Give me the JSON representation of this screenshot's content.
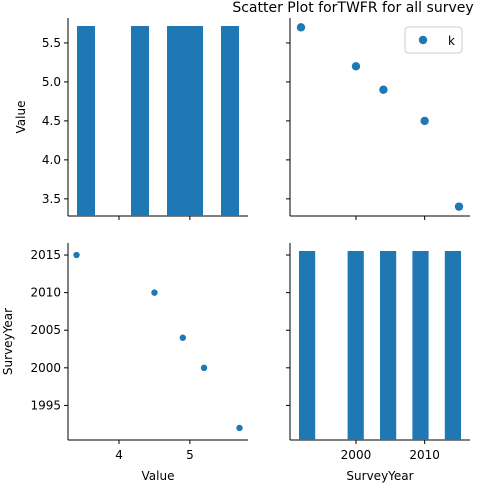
{
  "chart_data": {
    "type": "scatter",
    "title": "Scatter Plot forTWFR for all survey",
    "variables": [
      "Value",
      "SurveyYear"
    ],
    "points": [
      {
        "Value": 5.7,
        "SurveyYear": 1992
      },
      {
        "Value": 5.2,
        "SurveyYear": 2000
      },
      {
        "Value": 4.9,
        "SurveyYear": 2004
      },
      {
        "Value": 4.5,
        "SurveyYear": 2010
      },
      {
        "Value": 3.4,
        "SurveyYear": 2015
      }
    ],
    "panels": {
      "value_hist": {
        "type": "histogram",
        "variable": "Value",
        "counts": [
          1,
          0,
          0,
          1,
          0,
          1,
          1,
          0,
          1
        ]
      },
      "value_vs_year": {
        "type": "scatter",
        "x": "SurveyYear",
        "y": "Value",
        "legend": "k",
        "legend_position": "top-right"
      },
      "year_vs_value": {
        "type": "scatter",
        "x": "Value",
        "y": "SurveyYear"
      },
      "year_hist": {
        "type": "histogram",
        "variable": "SurveyYear",
        "counts": [
          1,
          0,
          0,
          1,
          0,
          1,
          0,
          1,
          0,
          1
        ]
      }
    },
    "axes": {
      "Value": {
        "label": "Value",
        "range": [
          3.28,
          5.82
        ],
        "ticks": [
          3.5,
          4.0,
          4.5,
          5.0,
          5.5
        ],
        "tick_labels": [
          "3.5",
          "4.0",
          "4.5",
          "5.0",
          "5.5"
        ],
        "bottom_ticks": [
          4,
          5
        ],
        "bottom_tick_labels": [
          "4",
          "5"
        ]
      },
      "SurveyYear": {
        "label": "SurveyYear",
        "range": [
          1990.4,
          2016.6
        ],
        "ticks": [
          1995,
          2000,
          2005,
          2010,
          2015
        ],
        "tick_labels": [
          "1995",
          "2000",
          "2005",
          "2010",
          "2015"
        ],
        "bottom_ticks": [
          2000,
          2010
        ],
        "bottom_tick_labels": [
          "2000",
          "2010"
        ]
      }
    },
    "color": "#1f77b4",
    "grid": false
  }
}
